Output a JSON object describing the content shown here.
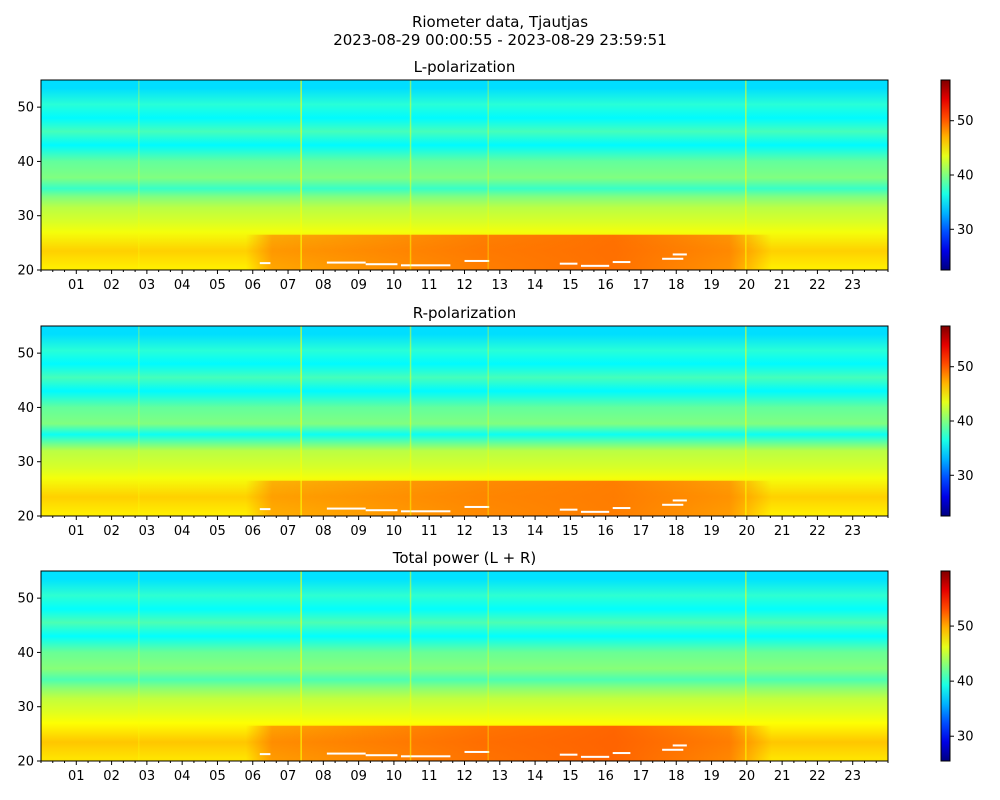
{
  "figure": {
    "title": "Riometer data, Tjautjas",
    "subtitle": "2023-08-29 00:00:55 - 2023-08-29 23:59:51"
  },
  "chart_data": [
    {
      "type": "heatmap",
      "title": "L-polarization",
      "xlabel": "",
      "ylabel": "",
      "x_range_hours": [
        0,
        24
      ],
      "x_tick_labels": [
        "01",
        "02",
        "03",
        "04",
        "05",
        "06",
        "07",
        "08",
        "09",
        "10",
        "11",
        "12",
        "13",
        "14",
        "15",
        "16",
        "17",
        "18",
        "19",
        "20",
        "21",
        "22",
        "23"
      ],
      "ylim": [
        20,
        55
      ],
      "y_ticks": [
        20,
        30,
        40,
        50
      ],
      "colormap": "jet",
      "colorbar_range": [
        22.5,
        57.5
      ],
      "colorbar_ticks": [
        30,
        40,
        50
      ],
      "value_bands": [
        {
          "y": [
            20,
            21
          ],
          "value": 45
        },
        {
          "y": [
            21,
            26
          ],
          "value": 46
        },
        {
          "y": [
            26,
            28
          ],
          "value": 44
        },
        {
          "y": [
            28,
            30
          ],
          "value": 43
        },
        {
          "y": [
            30,
            33
          ],
          "value": 42
        },
        {
          "y": [
            33,
            34
          ],
          "value": 40
        },
        {
          "y": [
            34,
            36
          ],
          "value": 37.5
        },
        {
          "y": [
            36,
            38
          ],
          "value": 40
        },
        {
          "y": [
            38,
            42
          ],
          "value": 39
        },
        {
          "y": [
            42,
            44
          ],
          "value": 35.5
        },
        {
          "y": [
            44,
            47
          ],
          "value": 38
        },
        {
          "y": [
            47,
            49
          ],
          "value": 35.5
        },
        {
          "y": [
            49,
            52
          ],
          "value": 37
        },
        {
          "y": [
            52,
            55
          ],
          "value": 34.5
        }
      ],
      "enhancement": {
        "hours": [
          5.8,
          20.7
        ],
        "y": [
          20,
          26.5
        ],
        "value": 49.5
      }
    },
    {
      "type": "heatmap",
      "title": "R-polarization",
      "xlabel": "",
      "ylabel": "",
      "x_range_hours": [
        0,
        24
      ],
      "x_tick_labels": [
        "01",
        "02",
        "03",
        "04",
        "05",
        "06",
        "07",
        "08",
        "09",
        "10",
        "11",
        "12",
        "13",
        "14",
        "15",
        "16",
        "17",
        "18",
        "19",
        "20",
        "21",
        "22",
        "23"
      ],
      "ylim": [
        20,
        55
      ],
      "y_ticks": [
        20,
        30,
        40,
        50
      ],
      "colormap": "jet",
      "colorbar_range": [
        22.5,
        57.5
      ],
      "colorbar_ticks": [
        30,
        40,
        50
      ],
      "value_bands": [
        {
          "y": [
            20,
            21
          ],
          "value": 45
        },
        {
          "y": [
            21,
            26
          ],
          "value": 46
        },
        {
          "y": [
            26,
            28
          ],
          "value": 44
        },
        {
          "y": [
            28,
            30
          ],
          "value": 43
        },
        {
          "y": [
            30,
            34
          ],
          "value": 42
        },
        {
          "y": [
            34,
            36
          ],
          "value": 36
        },
        {
          "y": [
            36,
            38
          ],
          "value": 40
        },
        {
          "y": [
            38,
            42
          ],
          "value": 39
        },
        {
          "y": [
            42,
            44
          ],
          "value": 35.5
        },
        {
          "y": [
            44,
            47
          ],
          "value": 38
        },
        {
          "y": [
            47,
            49
          ],
          "value": 35.5
        },
        {
          "y": [
            49,
            52
          ],
          "value": 37
        },
        {
          "y": [
            52,
            55
          ],
          "value": 34.5
        }
      ],
      "enhancement": {
        "hours": [
          5.8,
          20.7
        ],
        "y": [
          20,
          26.5
        ],
        "value": 49
      }
    },
    {
      "type": "heatmap",
      "title": "Total power (L + R)",
      "xlabel": "",
      "ylabel": "",
      "x_range_hours": [
        0,
        24
      ],
      "x_tick_labels": [
        "01",
        "02",
        "03",
        "04",
        "05",
        "06",
        "07",
        "08",
        "09",
        "10",
        "11",
        "12",
        "13",
        "14",
        "15",
        "16",
        "17",
        "18",
        "19",
        "20",
        "21",
        "22",
        "23"
      ],
      "ylim": [
        20,
        55
      ],
      "y_ticks": [
        20,
        30,
        40,
        50
      ],
      "colormap": "jet",
      "colorbar_range": [
        25.5,
        60
      ],
      "colorbar_ticks": [
        30,
        40,
        50
      ],
      "value_bands": [
        {
          "y": [
            20,
            21
          ],
          "value": 48
        },
        {
          "y": [
            21,
            26
          ],
          "value": 49
        },
        {
          "y": [
            26,
            28
          ],
          "value": 47
        },
        {
          "y": [
            28,
            30
          ],
          "value": 46
        },
        {
          "y": [
            30,
            33
          ],
          "value": 45
        },
        {
          "y": [
            33,
            34
          ],
          "value": 43
        },
        {
          "y": [
            34,
            36
          ],
          "value": 41
        },
        {
          "y": [
            36,
            38
          ],
          "value": 43
        },
        {
          "y": [
            38,
            42
          ],
          "value": 42
        },
        {
          "y": [
            42,
            44
          ],
          "value": 38.5
        },
        {
          "y": [
            44,
            47
          ],
          "value": 41
        },
        {
          "y": [
            47,
            49
          ],
          "value": 38.5
        },
        {
          "y": [
            49,
            52
          ],
          "value": 40
        },
        {
          "y": [
            52,
            55
          ],
          "value": 37.5
        }
      ],
      "enhancement": {
        "hours": [
          5.8,
          20.7
        ],
        "y": [
          20,
          26.5
        ],
        "value": 52.5
      }
    }
  ]
}
